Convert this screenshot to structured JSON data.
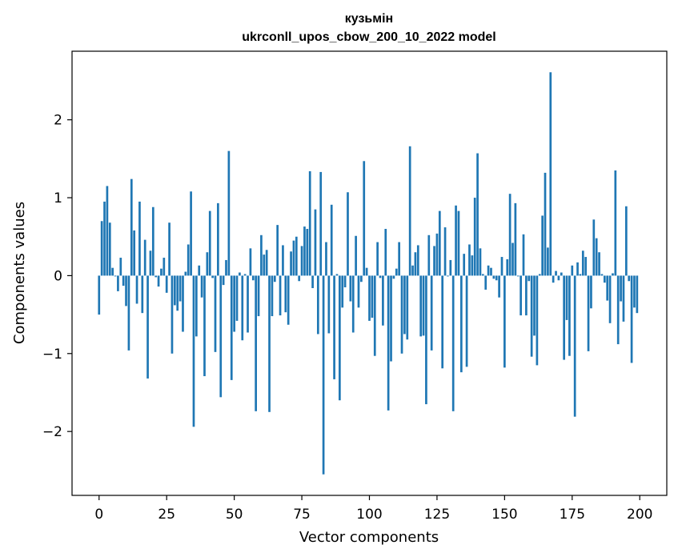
{
  "chart_data": {
    "type": "bar",
    "title": "кузьмін",
    "subtitle": "ukrconll_upos_cbow_200_10_2022 model",
    "xlabel": "Vector components",
    "ylabel": "Components values",
    "xlim": [
      -10,
      210
    ],
    "ylim": [
      -2.82,
      2.88
    ],
    "xticks": [
      0,
      25,
      50,
      75,
      100,
      125,
      150,
      175,
      200
    ],
    "xtick_labels": [
      "0",
      "25",
      "50",
      "75",
      "100",
      "125",
      "150",
      "175",
      "200"
    ],
    "yticks": [
      -2,
      -1,
      0,
      1,
      2
    ],
    "ytick_labels": [
      "−2",
      "−1",
      "0",
      "1",
      "2"
    ],
    "grid": false,
    "legend": "none",
    "color": "#1f77b4",
    "x": [
      0,
      1,
      2,
      3,
      4,
      5,
      6,
      7,
      8,
      9,
      10,
      11,
      12,
      13,
      14,
      15,
      16,
      17,
      18,
      19,
      20,
      21,
      22,
      23,
      24,
      25,
      26,
      27,
      28,
      29,
      30,
      31,
      32,
      33,
      34,
      35,
      36,
      37,
      38,
      39,
      40,
      41,
      42,
      43,
      44,
      45,
      46,
      47,
      48,
      49,
      50,
      51,
      52,
      53,
      54,
      55,
      56,
      57,
      58,
      59,
      60,
      61,
      62,
      63,
      64,
      65,
      66,
      67,
      68,
      69,
      70,
      71,
      72,
      73,
      74,
      75,
      76,
      77,
      78,
      79,
      80,
      81,
      82,
      83,
      84,
      85,
      86,
      87,
      88,
      89,
      90,
      91,
      92,
      93,
      94,
      95,
      96,
      97,
      98,
      99,
      100,
      101,
      102,
      103,
      104,
      105,
      106,
      107,
      108,
      109,
      110,
      111,
      112,
      113,
      114,
      115,
      116,
      117,
      118,
      119,
      120,
      121,
      122,
      123,
      124,
      125,
      126,
      127,
      128,
      129,
      130,
      131,
      132,
      133,
      134,
      135,
      136,
      137,
      138,
      139,
      140,
      141,
      142,
      143,
      144,
      145,
      146,
      147,
      148,
      149,
      150,
      151,
      152,
      153,
      154,
      155,
      156,
      157,
      158,
      159,
      160,
      161,
      162,
      163,
      164,
      165,
      166,
      167,
      168,
      169,
      170,
      171,
      172,
      173,
      174,
      175,
      176,
      177,
      178,
      179,
      180,
      181,
      182,
      183,
      184,
      185,
      186,
      187,
      188,
      189,
      190,
      191,
      192,
      193,
      194,
      195,
      196,
      197,
      198,
      199
    ],
    "values": [
      -0.5,
      0.7,
      0.95,
      1.15,
      0.68,
      0.1,
      -0.01,
      -0.2,
      0.23,
      -0.13,
      -0.39,
      -0.96,
      1.24,
      0.58,
      -0.36,
      0.95,
      -0.48,
      0.46,
      -1.32,
      0.32,
      0.88,
      -0.02,
      -0.14,
      0.09,
      0.23,
      -0.22,
      0.68,
      -1.0,
      -0.38,
      -0.45,
      -0.33,
      -0.72,
      0.05,
      0.4,
      1.08,
      -1.94,
      -0.78,
      0.13,
      -0.28,
      -1.29,
      0.3,
      0.83,
      -0.03,
      -0.98,
      0.93,
      -1.56,
      -0.12,
      0.2,
      1.6,
      -1.34,
      -0.72,
      -0.58,
      0.04,
      -0.83,
      0.02,
      -0.73,
      0.35,
      -0.06,
      -1.74,
      -0.52,
      0.52,
      0.27,
      0.33,
      -1.75,
      -0.52,
      -0.08,
      0.65,
      -0.51,
      0.39,
      -0.47,
      -0.63,
      0.31,
      0.45,
      0.5,
      -0.07,
      0.38,
      0.63,
      0.6,
      1.34,
      -0.16,
      0.85,
      -0.75,
      1.33,
      -2.55,
      0.43,
      -0.74,
      0.91,
      -1.33,
      0.02,
      -1.6,
      -0.41,
      -0.15,
      1.07,
      -0.33,
      -0.73,
      0.51,
      -0.41,
      -0.08,
      1.47,
      0.1,
      -0.58,
      -0.54,
      -1.03,
      0.43,
      -0.03,
      -0.64,
      0.6,
      -1.73,
      -1.1,
      -0.04,
      0.09,
      0.43,
      -1.0,
      -0.75,
      -0.82,
      1.66,
      0.13,
      0.3,
      0.39,
      -0.78,
      -0.77,
      -1.65,
      0.52,
      -0.96,
      0.38,
      0.54,
      0.83,
      -1.19,
      0.62,
      -0.01,
      0.2,
      -1.74,
      0.9,
      0.83,
      -1.24,
      0.28,
      -1.17,
      0.4,
      0.26,
      1.0,
      1.57,
      0.35,
      0.02,
      -0.18,
      0.13,
      0.1,
      -0.04,
      -0.06,
      -0.28,
      0.24,
      -1.18,
      0.21,
      1.05,
      0.42,
      0.93,
      -0.01,
      -0.51,
      0.53,
      -0.51,
      -0.07,
      -1.04,
      -0.77,
      -1.15,
      0.02,
      0.77,
      1.32,
      0.36,
      2.61,
      -0.09,
      0.06,
      -0.06,
      0.04,
      -1.08,
      -0.57,
      -1.03,
      0.13,
      -1.81,
      0.17,
      0.02,
      0.32,
      0.24,
      -0.97,
      -0.42,
      0.72,
      0.48,
      0.3,
      0.02,
      -0.09,
      -0.32,
      -0.61,
      0.03,
      1.35,
      -0.88,
      -0.33,
      -0.59,
      0.89,
      -0.07,
      -1.12,
      -0.41,
      -0.48
    ]
  }
}
